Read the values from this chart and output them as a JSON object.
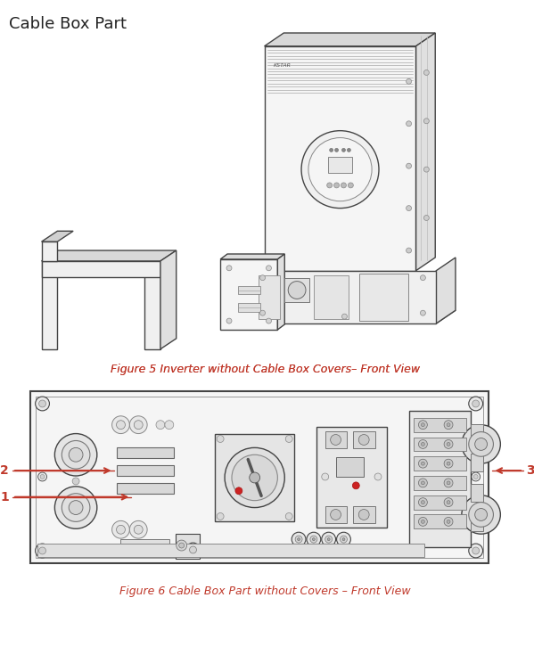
{
  "title": "Cable Box Part",
  "title_fontsize": 13,
  "title_color": "#222222",
  "fig_bg": "#ffffff",
  "figure5_caption": "Figure 5 Inverter without Cable Box Covers– Front View",
  "figure6_caption": "Figure 6 Cable Box Part without Covers – Front View",
  "caption_color": "#c0392b",
  "caption_fontsize": 9,
  "label1": "1",
  "label2": "2",
  "label3": "3",
  "label_color": "#c0392b",
  "arrow_color": "#c0392b",
  "line_color": "#444444",
  "line_width": 1.0
}
